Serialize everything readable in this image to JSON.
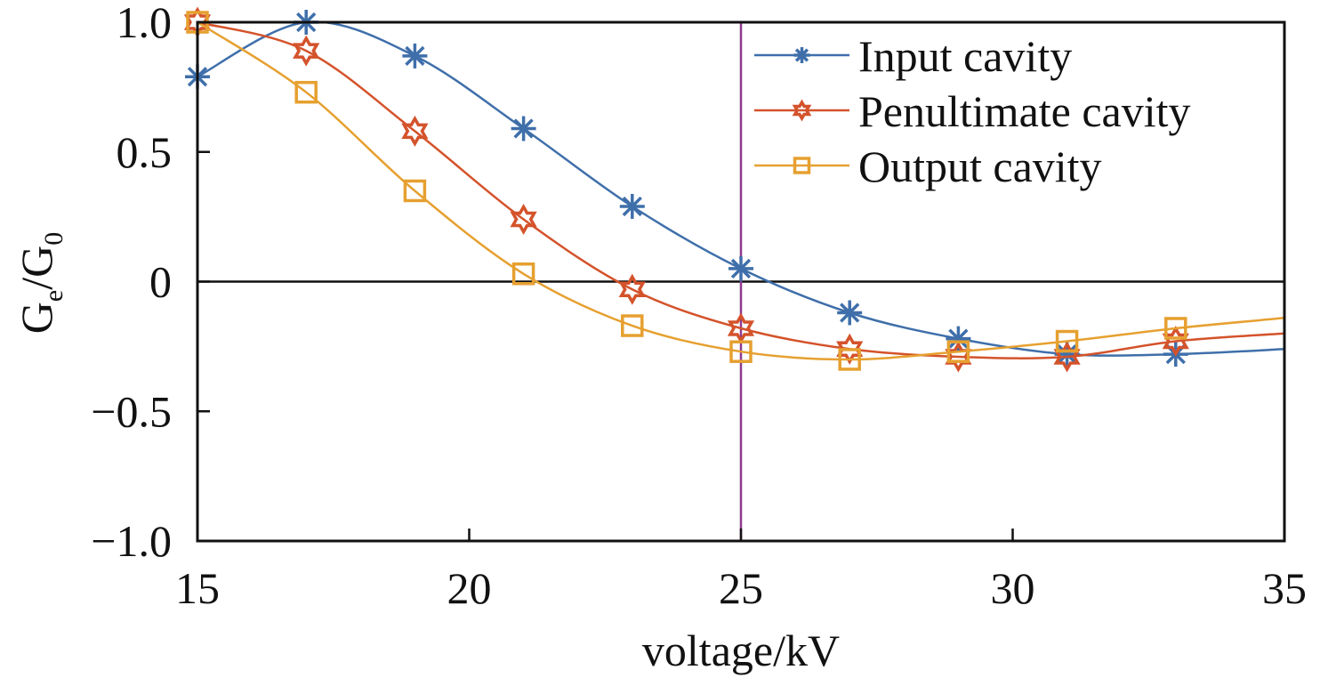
{
  "chart_data": {
    "type": "line",
    "title": "",
    "xlabel": "voltage/kV",
    "ylabel": {
      "main": "G",
      "sub1": "e",
      "sep": "/G",
      "sub2": "0"
    },
    "xlim": [
      15,
      35
    ],
    "ylim": [
      -1.0,
      1.0
    ],
    "xticks": [
      15,
      20,
      25,
      30,
      35
    ],
    "xtick_labels": [
      "15",
      "20",
      "25",
      "30",
      "35"
    ],
    "yticks": [
      1.0,
      0.5,
      0,
      -0.5,
      -1.0
    ],
    "ytick_labels": [
      "1.0",
      "0.5",
      "0",
      "−0.5",
      "−1.0"
    ],
    "grid": false,
    "legend_position": "top-right",
    "reference_lines": {
      "horizontal_y": 0,
      "vertical_x": 25,
      "vertical_color": "#8e3a8e"
    },
    "x": [
      15,
      17,
      19,
      21,
      23,
      25,
      27,
      29,
      31,
      33
    ],
    "series": [
      {
        "name": "Input cavity",
        "color": "#3f6faa",
        "marker": "asterisk",
        "values": [
          0.79,
          1.0,
          0.87,
          0.59,
          0.29,
          0.05,
          -0.12,
          -0.22,
          -0.28,
          -0.28
        ],
        "curve_end": -0.26
      },
      {
        "name": "Penultimate cavity",
        "color": "#d4532b",
        "marker": "hexagram",
        "values": [
          1.0,
          0.89,
          0.58,
          0.24,
          -0.03,
          -0.18,
          -0.26,
          -0.29,
          -0.29,
          -0.23
        ],
        "curve_end": -0.2
      },
      {
        "name": "Output cavity",
        "color": "#e6a030",
        "marker": "square",
        "values": [
          1.0,
          0.73,
          0.35,
          0.03,
          -0.17,
          -0.27,
          -0.3,
          -0.27,
          -0.23,
          -0.18
        ],
        "curve_end": -0.14
      }
    ]
  }
}
